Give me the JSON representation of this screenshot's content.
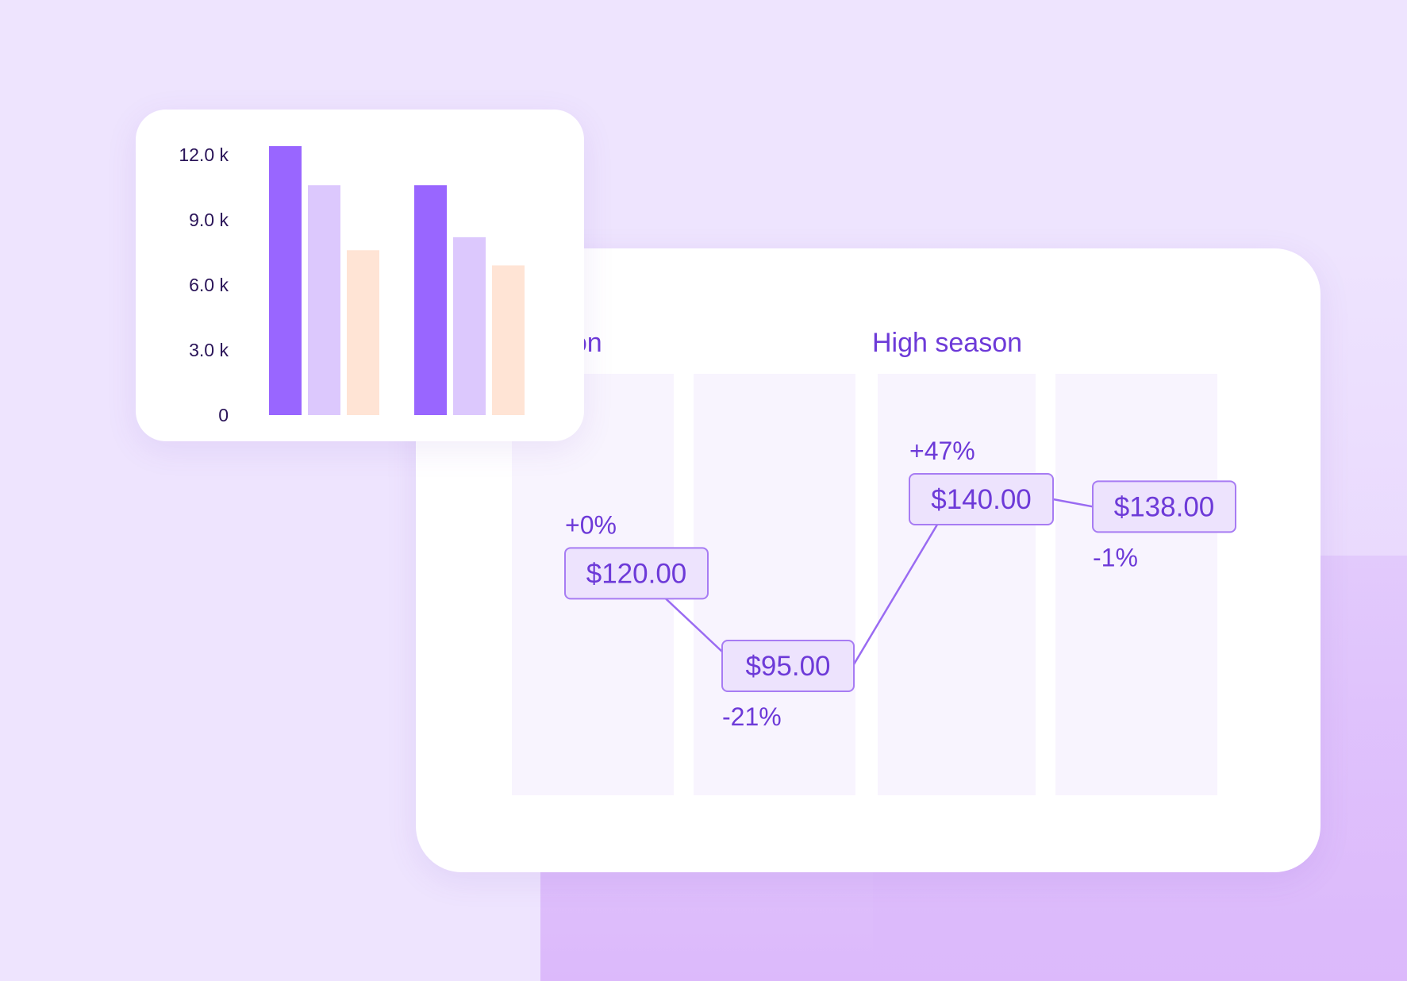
{
  "colors": {
    "background": "#eee4fe",
    "accent_panel": "#dcb9fb",
    "primary": "#9966ff",
    "secondary": "#dcc8fd",
    "tertiary": "#ffe4d5",
    "label": "#6d3ad8",
    "axis_text": "#2a1458",
    "column_bg": "#f8f4fe",
    "tag_bg": "#ede3fd",
    "tag_border": "#a77cf3"
  },
  "chart_data": [
    {
      "type": "bar",
      "categories": [
        "",
        ""
      ],
      "series": [
        {
          "values": [
            12.4,
            10.6
          ]
        },
        {
          "values": [
            10.6,
            8.2
          ]
        },
        {
          "values": [
            7.6,
            6.9
          ]
        }
      ],
      "y_ticks": [
        "12.0 k",
        "9.0 k",
        "6.0 k",
        "3.0 k",
        "0"
      ],
      "ylim": [
        0,
        12
      ],
      "grid": false
    },
    {
      "type": "line",
      "sections": [
        "season",
        "High season"
      ],
      "points": [
        {
          "price": 120.0,
          "price_label": "$120.00",
          "change_label": "+0%",
          "change_position": "above"
        },
        {
          "price": 95.0,
          "price_label": "$95.00",
          "change_label": "-21%",
          "change_position": "below"
        },
        {
          "price": 140.0,
          "price_label": "$140.00",
          "change_label": "+47%",
          "change_position": "above"
        },
        {
          "price": 138.0,
          "price_label": "$138.00",
          "change_label": "-1%",
          "change_position": "below"
        }
      ],
      "grid": false
    }
  ]
}
